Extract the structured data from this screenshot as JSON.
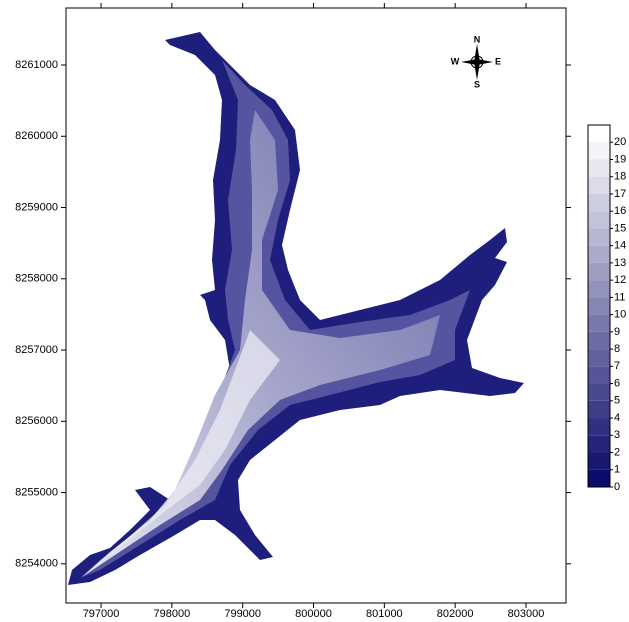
{
  "chart_data": {
    "type": "contour",
    "xlim": [
      796505,
      803565
    ],
    "ylim": [
      8253450,
      8261800
    ],
    "xticks": [
      797000,
      798000,
      799000,
      800000,
      801000,
      802000,
      803000
    ],
    "yticks": [
      8254000,
      8255000,
      8256000,
      8257000,
      8258000,
      8259000,
      8260000,
      8261000
    ],
    "colorbar": {
      "levels": [
        0,
        1,
        2,
        3,
        4,
        5,
        6,
        7,
        8,
        9,
        10,
        11,
        12,
        13,
        14,
        15,
        16,
        17,
        18,
        19,
        20
      ],
      "clim": [
        0,
        21
      ],
      "color_low": "#0c0c6a",
      "color_high": "#ffffff"
    },
    "compass_labels": [
      "N",
      "E",
      "S",
      "W"
    ]
  }
}
